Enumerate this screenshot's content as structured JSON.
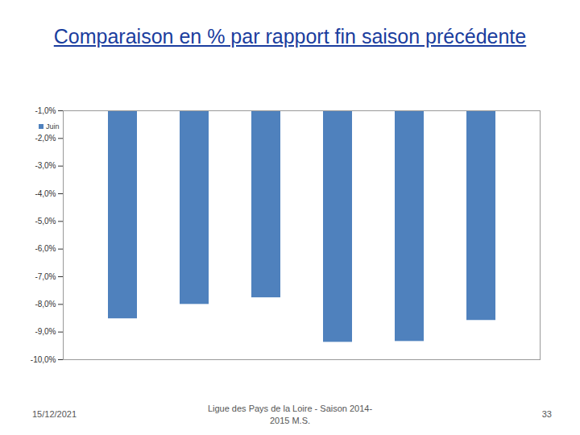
{
  "chart_data": {
    "type": "bar",
    "title": "Comparaison en % par rapport fin saison précédente",
    "categories": [
      null,
      null,
      null,
      null,
      null,
      null
    ],
    "series": [
      {
        "name": "Juin",
        "color": "#4f81bd",
        "values": [
          -8.52,
          -8.0,
          -7.76,
          -9.37,
          -9.34,
          -8.58
        ]
      }
    ],
    "ylim": [
      -10,
      -1
    ],
    "yticks": [
      {
        "value": -1,
        "label": "-1,0%"
      },
      {
        "value": -2,
        "label": "-2,0%"
      },
      {
        "value": -3,
        "label": "-3,0%"
      },
      {
        "value": -4,
        "label": "-4,0%"
      },
      {
        "value": -5,
        "label": "-5,0%"
      },
      {
        "value": -6,
        "label": "-6,0%"
      },
      {
        "value": -7,
        "label": "-7,0%"
      },
      {
        "value": -8,
        "label": "-8,0%"
      },
      {
        "value": -9,
        "label": "-9,0%"
      },
      {
        "value": -10,
        "label": "-10,0%"
      }
    ],
    "legend": "top-left",
    "grid": false,
    "footer": {
      "date": "15/12/2021",
      "text": "Ligue des Pays de la Loire - Saison 2014-2015 M.S.",
      "page": "33"
    }
  }
}
